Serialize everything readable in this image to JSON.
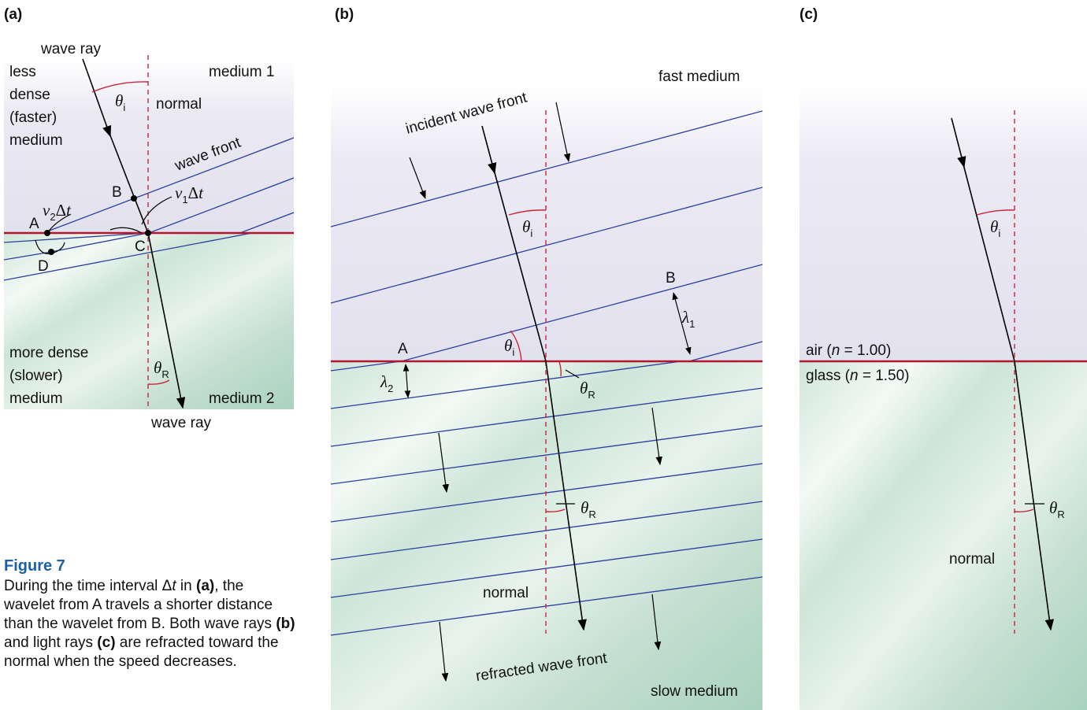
{
  "figure": {
    "title": "Figure 7",
    "caption": [
      {
        "text": "During the time interval "
      },
      {
        "text": "Δ"
      },
      {
        "text": "t",
        "style": "italic"
      },
      {
        "text": " in "
      },
      {
        "text": "(a)",
        "style": "bold"
      },
      {
        "text": ", the wavelet from A travels a shorter distance than the wavelet from B. Both wave rays "
      },
      {
        "text": "(b)",
        "style": "bold"
      },
      {
        "text": " and light rays "
      },
      {
        "text": "(c)",
        "style": "bold"
      },
      {
        "text": " are refracted toward the normal when the speed decreases."
      }
    ]
  },
  "panel_a": {
    "label": "(a)",
    "incident_ray": "wave ray",
    "upper_medium": [
      "less",
      "dense",
      "(faster)",
      "medium"
    ],
    "medium_1": "medium 1",
    "angle_i": {
      "symbol": "θ",
      "sub": "i"
    },
    "normal": "normal",
    "wave_front": "wave front",
    "point_b": "B",
    "distance_1": {
      "symbol": "v",
      "sub": "1",
      "tail": [
        "Δ",
        "t"
      ]
    },
    "distance_2": {
      "symbol": "v",
      "sub": "2",
      "tail": [
        "Δ",
        "t"
      ]
    },
    "point_a": "A",
    "point_c": "C",
    "point_d": "D",
    "lower_medium": [
      "more dense",
      "(slower)",
      "medium"
    ],
    "angle_r": {
      "symbol": "θ",
      "sub": "R"
    },
    "medium_2": "medium 2",
    "refracted_ray": "wave ray"
  },
  "panel_b": {
    "label": "(b)",
    "fast_medium": "fast medium",
    "incident_front": "incident wave front",
    "angle_i_ray": {
      "symbol": "θ",
      "sub": "i"
    },
    "point_b": "B",
    "wavelength_1": {
      "symbol": "λ",
      "sub": "1"
    },
    "point_a": "A",
    "angle_i_front": {
      "symbol": "θ",
      "sub": "i"
    },
    "angle_r_front": {
      "symbol": "θ",
      "sub": "R"
    },
    "wavelength_2": {
      "symbol": "λ",
      "sub": "2"
    },
    "angle_r_ray": {
      "symbol": "θ",
      "sub": "R"
    },
    "normal": "normal",
    "refracted_front": "refracted wave front",
    "slow_medium": "slow medium"
  },
  "panel_c": {
    "label": "(c)",
    "angle_i": {
      "symbol": "θ",
      "sub": "i"
    },
    "air": {
      "before": "air (",
      "var": "n",
      "after": " = 1.00)"
    },
    "glass": {
      "before": "glass (",
      "var": "n",
      "after": " = 1.50)"
    },
    "angle_r": {
      "symbol": "θ",
      "sub": "R"
    },
    "normal": "normal"
  }
}
